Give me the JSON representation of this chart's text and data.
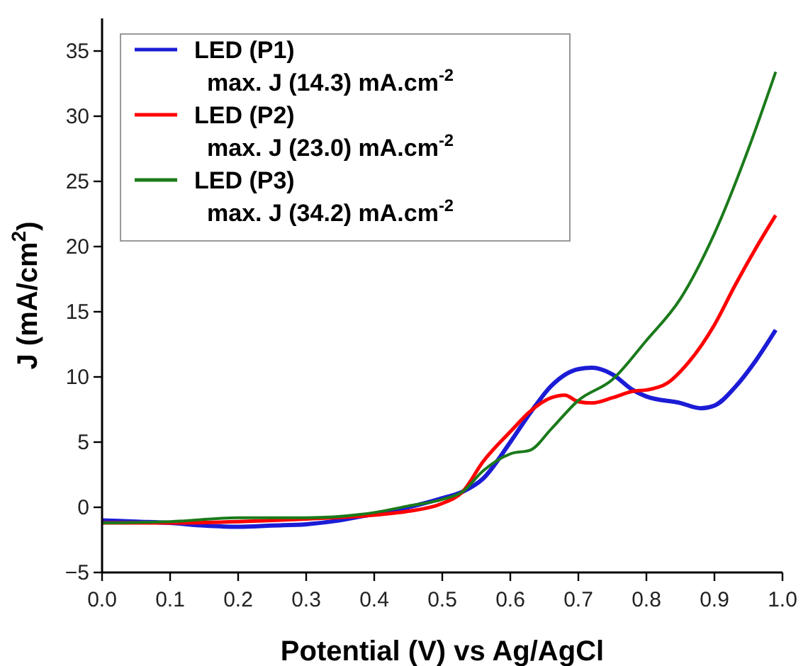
{
  "chart_data": {
    "type": "line",
    "xlabel": "Potential (V) vs Ag/AgCl",
    "ylabel": "J (mA/cm$^{2}$)",
    "xlim": [
      0,
      1.0
    ],
    "xticks": [
      {
        "value": 0,
        "label": "0.0"
      },
      0.1,
      0.2,
      0.3,
      0.4,
      0.5,
      0.6,
      0.7,
      0.8,
      0.9,
      {
        "value": 1,
        "label": "1.0"
      }
    ],
    "ylim": [
      -5,
      37.5
    ],
    "yticks": [
      {
        "value": -5,
        "label": "−5"
      },
      0,
      5,
      10,
      15,
      20,
      25,
      30,
      35
    ],
    "grid": false,
    "legend": "top left",
    "line_style": "solid",
    "marker": "none",
    "series": [
      {
        "name": "LED (P1)\nmax. J (14.3) mA.cm$^{-2}$",
        "color": "#1c1cd6",
        "x": [
          0,
          0.05,
          0.1,
          0.15,
          0.2,
          0.25,
          0.3,
          0.35,
          0.4,
          0.45,
          0.5,
          0.53,
          0.56,
          0.6,
          0.63,
          0.66,
          0.7,
          0.72,
          0.75,
          0.78,
          0.8,
          0.85,
          0.88,
          0.9,
          0.93,
          0.96,
          0.99
        ],
        "values": [
          -1.0,
          -1.1,
          -1.2,
          -1.4,
          -1.5,
          -1.4,
          -1.3,
          -1.0,
          -0.5,
          0.0,
          0.7,
          1.2,
          2.2,
          5.0,
          7.3,
          9.3,
          10.6,
          10.7,
          10.2,
          9.0,
          8.5,
          8.0,
          7.6,
          7.8,
          9.2,
          11.2,
          13.6
        ]
      },
      {
        "name": "LED (P2)\nmax. J (23.0) mA.cm$^{-2}$",
        "color": "#ff0000",
        "x": [
          0,
          0.1,
          0.2,
          0.3,
          0.4,
          0.45,
          0.5,
          0.53,
          0.56,
          0.6,
          0.63,
          0.66,
          0.68,
          0.7,
          0.72,
          0.75,
          0.78,
          0.8,
          0.83,
          0.86,
          0.9,
          0.93,
          0.96,
          0.99
        ],
        "values": [
          -1.2,
          -1.2,
          -1.1,
          -0.9,
          -0.6,
          -0.3,
          0.3,
          1.2,
          3.5,
          5.8,
          7.4,
          8.4,
          8.6,
          8.1,
          8.0,
          8.4,
          8.9,
          9.0,
          9.5,
          11.0,
          14.0,
          17.0,
          19.8,
          22.4
        ]
      },
      {
        "name": "LED (P3)\nmax. J (34.2) mA.cm$^{-2}$",
        "color": "#1a7a1a",
        "x": [
          0,
          0.1,
          0.2,
          0.3,
          0.4,
          0.45,
          0.5,
          0.53,
          0.56,
          0.6,
          0.63,
          0.66,
          0.7,
          0.75,
          0.8,
          0.85,
          0.9,
          0.95,
          0.99
        ],
        "values": [
          -1.2,
          -1.1,
          -0.8,
          -0.8,
          -0.4,
          0.1,
          0.6,
          1.2,
          2.8,
          4.1,
          4.4,
          6.0,
          8.2,
          9.8,
          12.8,
          16.0,
          21.0,
          27.5,
          33.4
        ]
      }
    ]
  }
}
